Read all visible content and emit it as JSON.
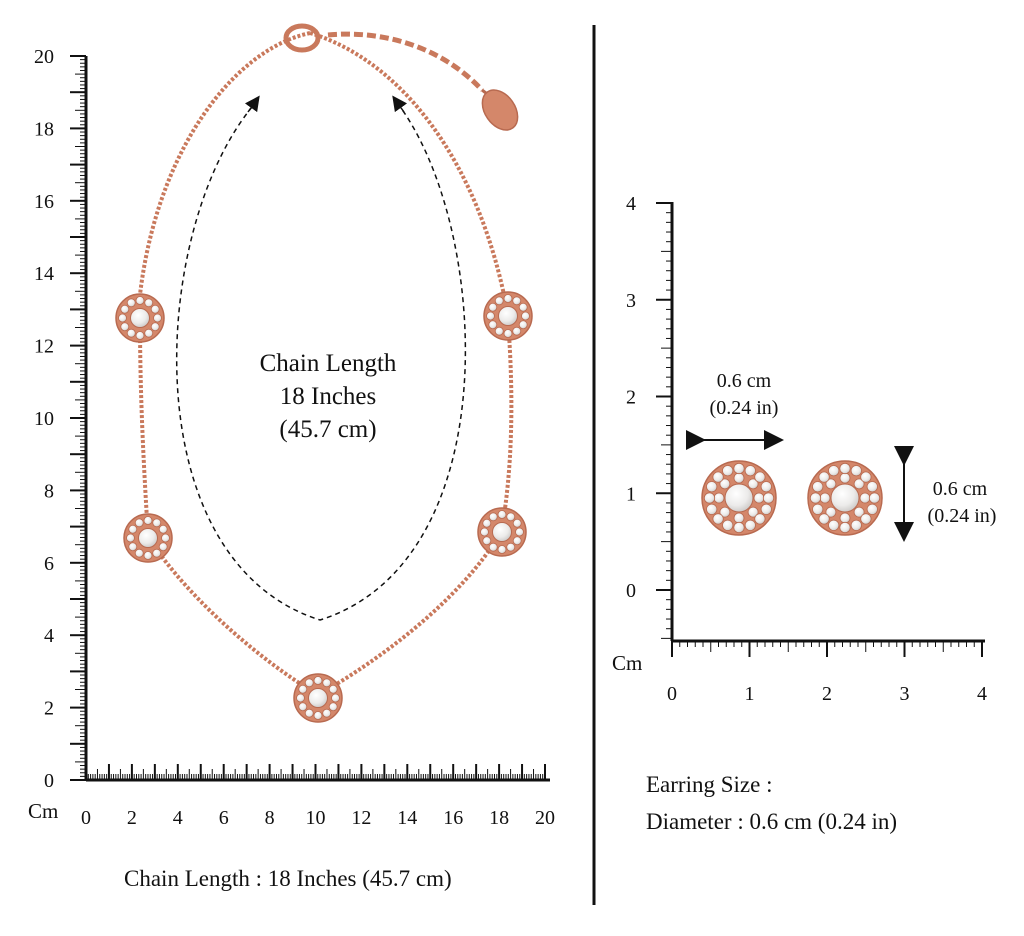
{
  "left_panel": {
    "y_axis_ticks": [
      "0",
      "2",
      "4",
      "6",
      "8",
      "10",
      "12",
      "14",
      "16",
      "18",
      "20"
    ],
    "x_axis_ticks": [
      "0",
      "2",
      "4",
      "6",
      "8",
      "10",
      "12",
      "14",
      "16",
      "18",
      "20"
    ],
    "unit_label": "Cm",
    "center_label": [
      "Chain Length",
      "18 Inches",
      "(45.7 cm)"
    ],
    "caption": "Chain Length : 18 Inches (45.7 cm)"
  },
  "right_panel": {
    "y_axis_ticks": [
      "0",
      "1",
      "2",
      "3",
      "4"
    ],
    "x_axis_ticks": [
      "0",
      "1",
      "2",
      "3",
      "4"
    ],
    "unit_label": "Cm",
    "width_label": [
      "0.6 cm",
      "(0.24 in)"
    ],
    "height_label": [
      "0.6 cm",
      "(0.24 in)"
    ],
    "caption_title": "Earring Size :",
    "caption_value": "Diameter : 0.6 cm (0.24 in)"
  },
  "colors": {
    "rose_gold": "#d4876a",
    "rose_gold_dark": "#b86a50",
    "stone": "#f4f2f0",
    "ink": "#111111"
  }
}
